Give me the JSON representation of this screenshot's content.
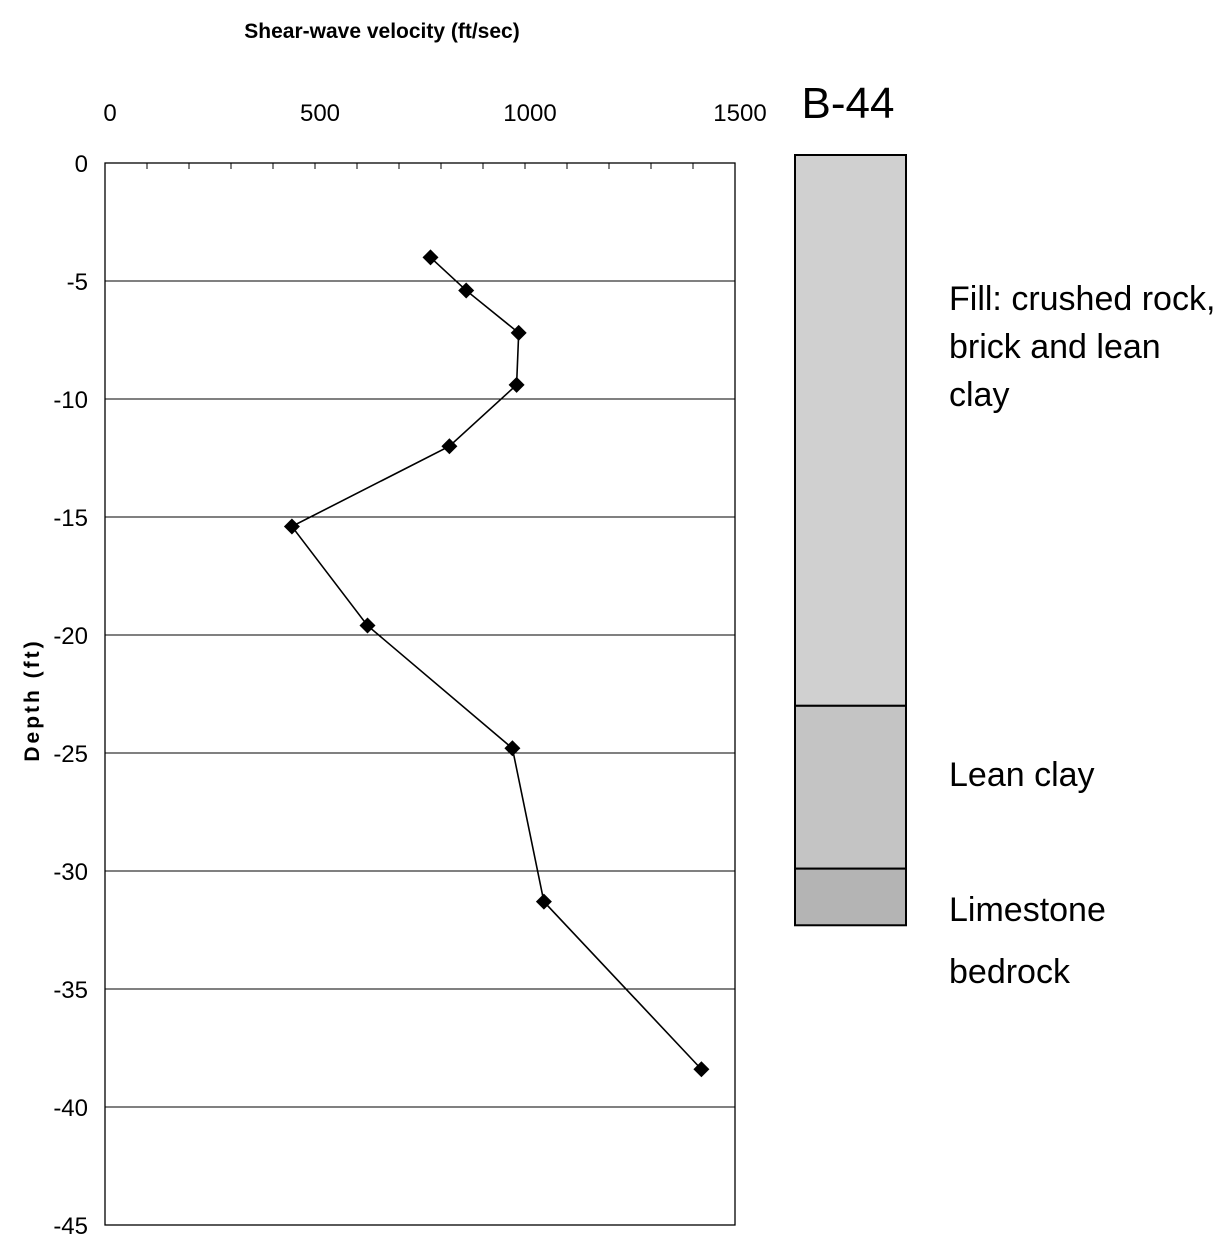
{
  "chart_data": {
    "type": "line",
    "title": "Shear-wave velocity (ft/sec)",
    "xlabel": "Shear-wave velocity (ft/sec)",
    "ylabel": "Depth (ft)",
    "xlim": [
      0,
      1500
    ],
    "ylim": [
      -45,
      0
    ],
    "x_ticks": [
      "0",
      "500",
      "1000",
      "1500"
    ],
    "y_ticks": [
      "0",
      "-5",
      "-10",
      "-15",
      "-20",
      "-25",
      "-30",
      "-35",
      "-40",
      "-45"
    ],
    "x_axis_position": "top",
    "grid": "horizontal",
    "legend": "none",
    "series": [
      {
        "marker": "diamond",
        "color": "#000000",
        "points": [
          {
            "x": 775,
            "y": -4.0
          },
          {
            "x": 860,
            "y": -5.4
          },
          {
            "x": 985,
            "y": -7.2
          },
          {
            "x": 980,
            "y": -9.4
          },
          {
            "x": 820,
            "y": -12.0
          },
          {
            "x": 445,
            "y": -15.4
          },
          {
            "x": 625,
            "y": -19.6
          },
          {
            "x": 970,
            "y": -24.8
          },
          {
            "x": 1045,
            "y": -31.3
          },
          {
            "x": 1420,
            "y": -38.4
          }
        ]
      }
    ],
    "boring": {
      "name": "B-44",
      "layers": [
        {
          "label_lines": [
            "Fill: crushed rock,",
            "brick and lean",
            "clay"
          ],
          "top": 0,
          "bottom": -23.0,
          "fill": "#d0d0d0"
        },
        {
          "label_lines": [
            "Lean clay"
          ],
          "top": -23.0,
          "bottom": -29.9,
          "fill": "#c4c4c4"
        },
        {
          "label_lines": [
            "Limestone",
            "bedrock"
          ],
          "top": -29.9,
          "bottom": -32.3,
          "fill": "#b4b4b4"
        }
      ]
    }
  }
}
